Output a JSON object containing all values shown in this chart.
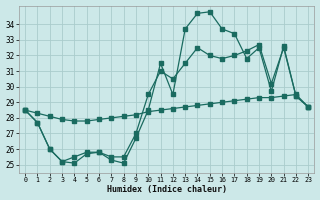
{
  "xlabel": "Humidex (Indice chaleur)",
  "x": [
    0,
    1,
    2,
    3,
    4,
    5,
    6,
    7,
    8,
    9,
    10,
    11,
    12,
    13,
    14,
    15,
    16,
    17,
    18,
    19,
    20,
    21,
    22,
    23
  ],
  "line_diag": [
    28.5,
    28.3,
    28.1,
    27.9,
    27.8,
    27.8,
    27.9,
    28.0,
    28.1,
    28.2,
    28.4,
    28.5,
    28.6,
    28.7,
    28.8,
    28.9,
    29.0,
    29.1,
    29.2,
    29.3,
    29.3,
    29.4,
    29.5,
    28.7
  ],
  "line_main": [
    28.5,
    27.7,
    26.0,
    25.2,
    25.1,
    25.7,
    25.8,
    25.3,
    25.1,
    26.7,
    28.5,
    31.5,
    29.5,
    33.7,
    34.7,
    34.8,
    33.7,
    33.4,
    31.8,
    32.5,
    29.7,
    32.6,
    29.4,
    28.7
  ],
  "line_trend": [
    28.5,
    27.7,
    26.0,
    25.2,
    25.5,
    25.8,
    25.8,
    25.5,
    25.5,
    27.0,
    29.5,
    31.0,
    30.5,
    31.5,
    32.5,
    32.0,
    31.8,
    32.0,
    32.3,
    32.7,
    30.2,
    32.5,
    29.4,
    28.7
  ],
  "bg_color": "#cce8e8",
  "grid_color": "#aacccc",
  "line_color": "#1a6b60",
  "ylim": [
    24.5,
    35.2
  ],
  "yticks": [
    25,
    26,
    27,
    28,
    29,
    30,
    31,
    32,
    33,
    34
  ],
  "xticks": [
    0,
    1,
    2,
    3,
    4,
    5,
    6,
    7,
    8,
    9,
    10,
    11,
    12,
    13,
    14,
    15,
    16,
    17,
    18,
    19,
    20,
    21,
    22,
    23
  ]
}
